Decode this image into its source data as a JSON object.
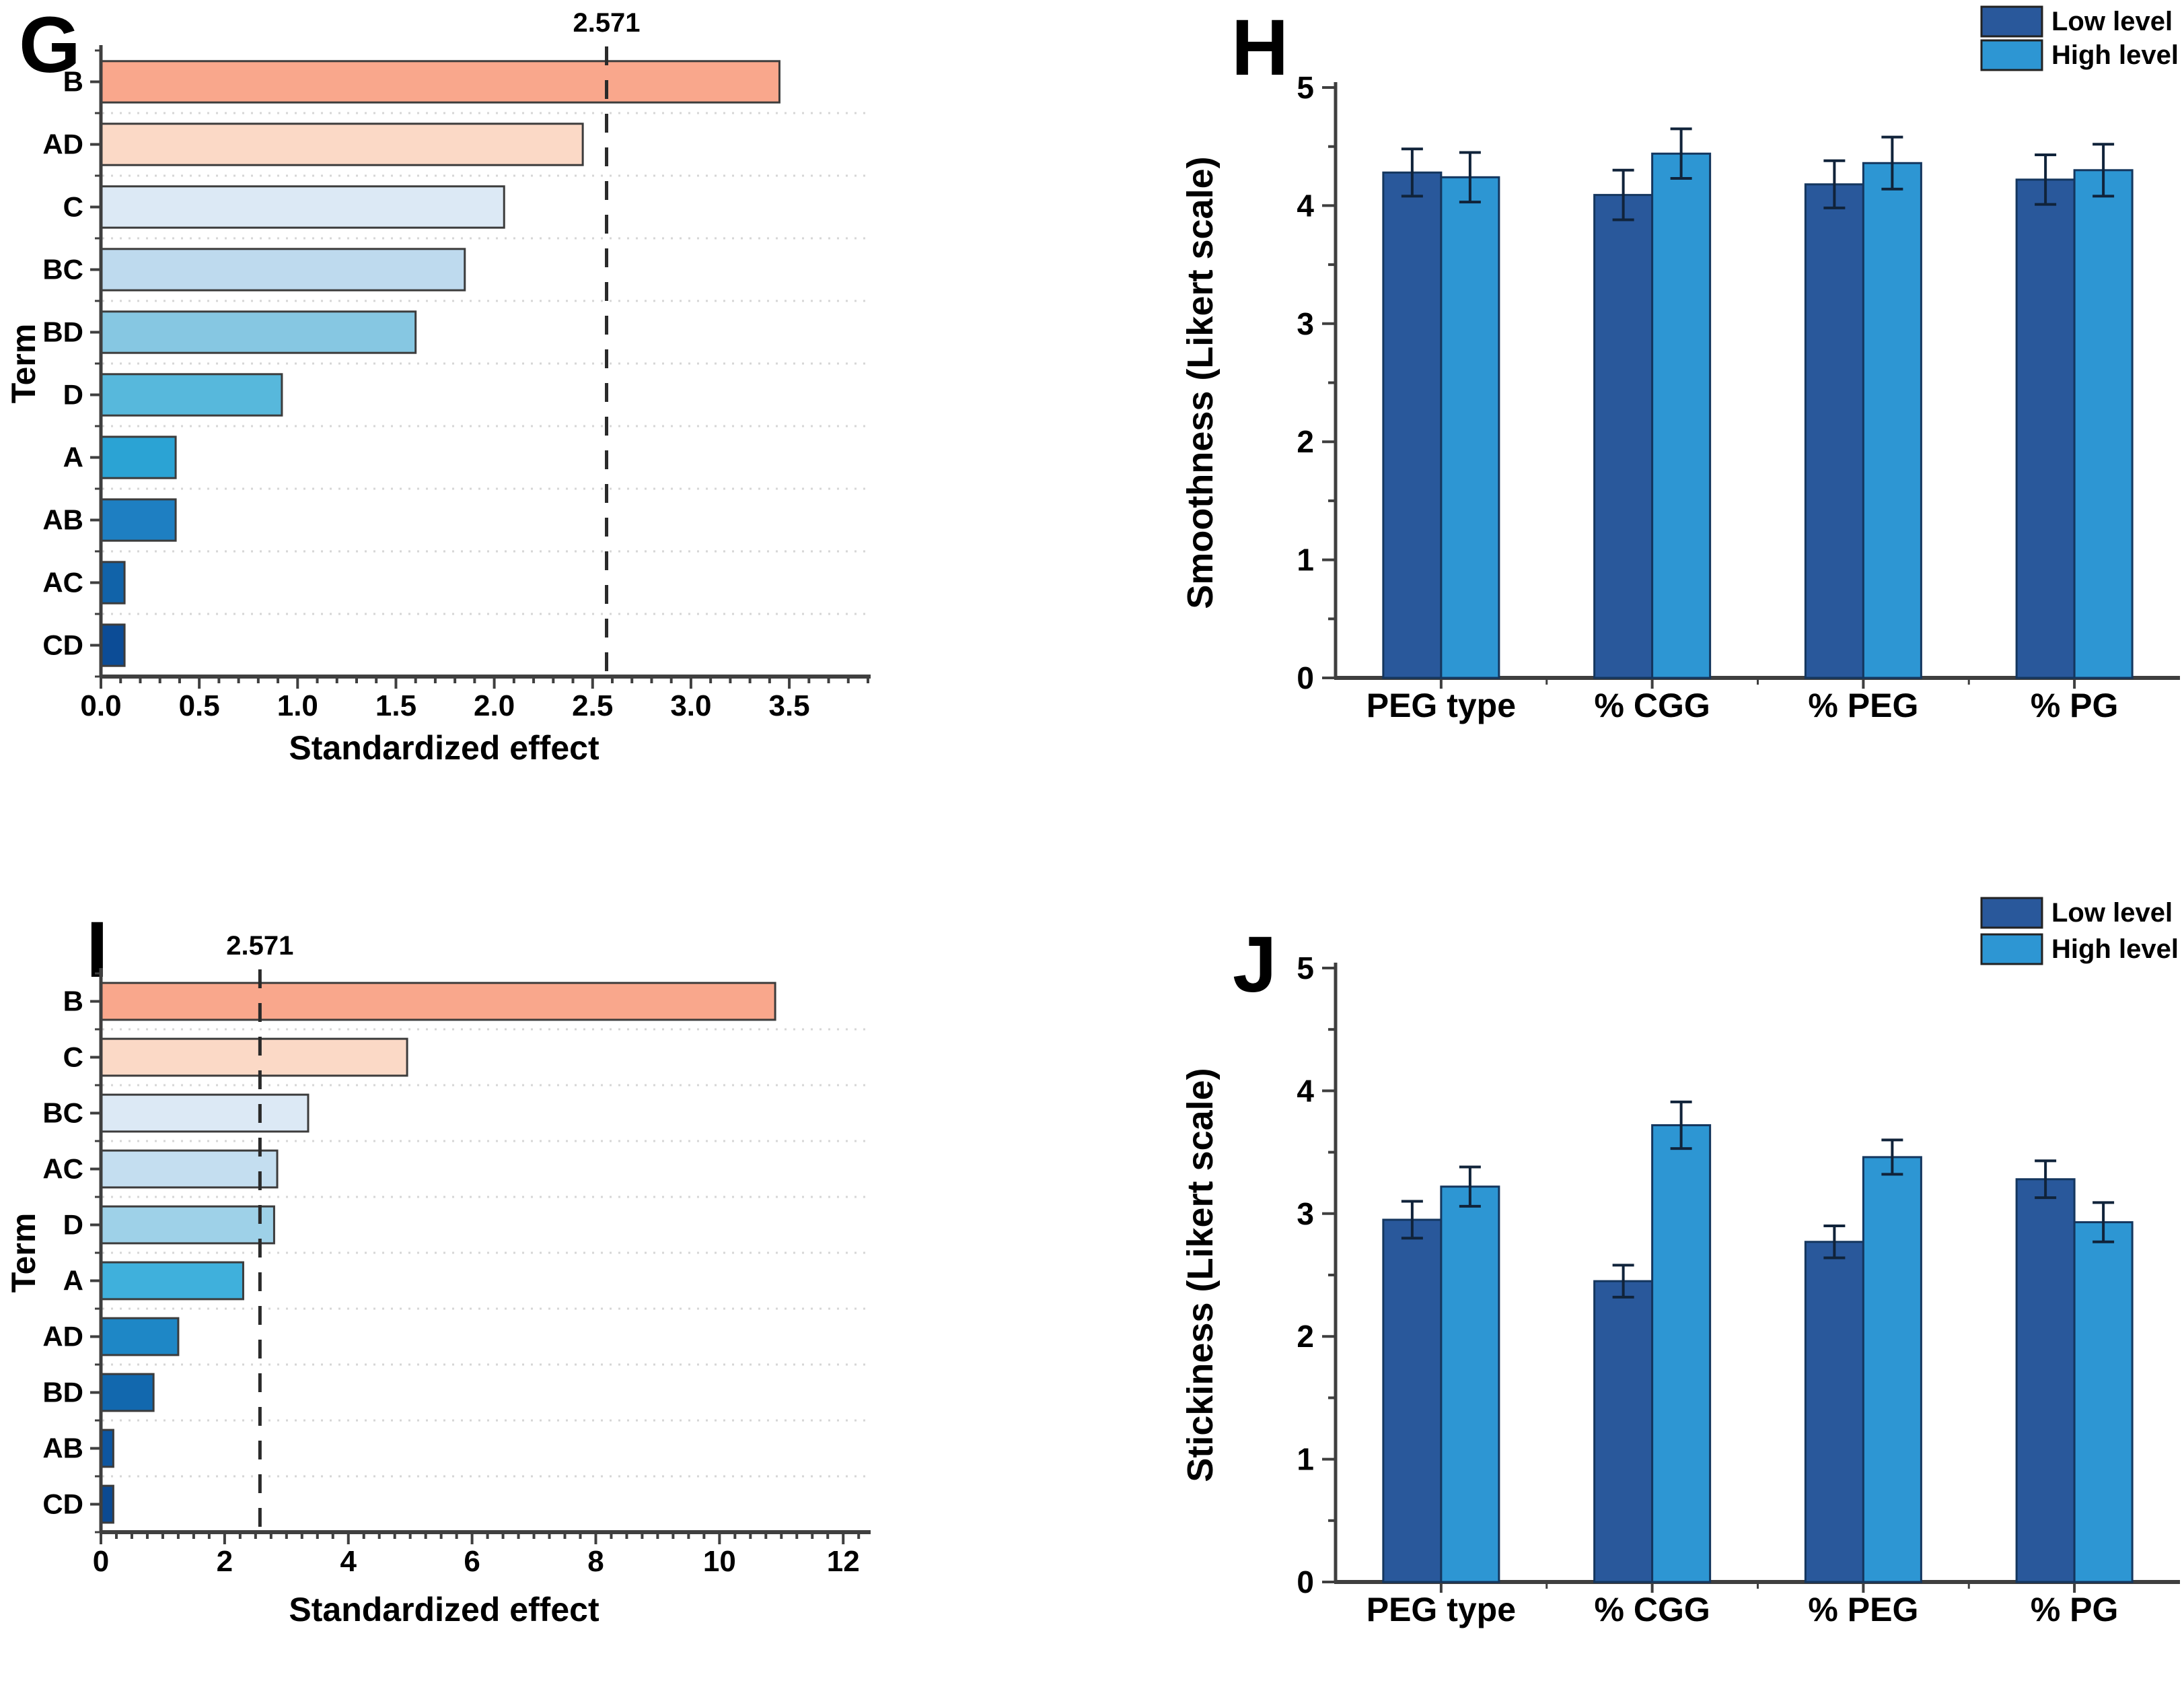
{
  "panels": {
    "G": {
      "letter": "G"
    },
    "H": {
      "letter": "H"
    },
    "I": {
      "letter": "I"
    },
    "J": {
      "letter": "J"
    }
  },
  "legend": {
    "items": [
      {
        "label": "Low level",
        "color": "#29589B"
      },
      {
        "label": "High level",
        "color": "#2D96D3"
      }
    ]
  },
  "chart_data": [
    {
      "id": "G",
      "type": "bar",
      "orientation": "horizontal",
      "title": "",
      "xlabel": "Standardized effect",
      "ylabel": "Term",
      "categories": [
        "B",
        "AD",
        "C",
        "BC",
        "BD",
        "D",
        "A",
        "AB",
        "AC",
        "CD"
      ],
      "values": [
        3.45,
        2.45,
        2.05,
        1.85,
        1.6,
        0.92,
        0.38,
        0.38,
        0.12,
        0.12
      ],
      "bar_colors": [
        "#F9A78C",
        "#FBD9C6",
        "#DCE9F5",
        "#BEDAEE",
        "#86C7E2",
        "#57B8DC",
        "#2BA3D4",
        "#1E7FC2",
        "#1163A9",
        "#0C4C96"
      ],
      "xlim": [
        0,
        3.9
      ],
      "xticks": [
        0,
        0.5,
        1,
        1.5,
        2,
        2.5,
        3,
        3.5
      ],
      "xtick_labels": [
        "0.0",
        "0.5",
        "1.0",
        "1.5",
        "2.0",
        "2.5",
        "3.0",
        "3.5"
      ],
      "minor_tick_step": 0.1,
      "reference_line": {
        "value": 2.571,
        "label": "2.571"
      },
      "grid": "dotted-horizontal"
    },
    {
      "id": "H",
      "type": "grouped_bar",
      "title": "",
      "ylabel": "Smoothness (Likert scale)",
      "categories": [
        "PEG type",
        "% CGG",
        "% PEG",
        "% PG"
      ],
      "series": [
        {
          "name": "Low level",
          "color": "#29589B",
          "values": [
            4.28,
            4.09,
            4.18,
            4.22
          ],
          "errors": [
            0.2,
            0.21,
            0.2,
            0.21
          ]
        },
        {
          "name": "High level",
          "color": "#2D96D3",
          "values": [
            4.24,
            4.44,
            4.36,
            4.3
          ],
          "errors": [
            0.21,
            0.21,
            0.22,
            0.22
          ]
        }
      ],
      "ylim": [
        0,
        5
      ],
      "yticks": [
        0,
        1,
        2,
        3,
        4,
        5
      ],
      "minor_tick_step": 0.5,
      "legend_position": "top-right",
      "grid": false
    },
    {
      "id": "I",
      "type": "bar",
      "orientation": "horizontal",
      "title": "",
      "xlabel": "Standardized effect",
      "ylabel": "Term",
      "categories": [
        "B",
        "C",
        "BC",
        "AC",
        "D",
        "A",
        "AD",
        "BD",
        "AB",
        "CD"
      ],
      "values": [
        10.9,
        4.95,
        3.35,
        2.85,
        2.8,
        2.3,
        1.25,
        0.85,
        0.2,
        0.2
      ],
      "bar_colors": [
        "#F9A78C",
        "#FBD9C6",
        "#DCE9F5",
        "#C4DEF0",
        "#9ED1E8",
        "#3FB0DC",
        "#1E87C6",
        "#1268AE",
        "#0E56A0",
        "#0C4A92"
      ],
      "xlim": [
        0,
        12.4
      ],
      "xticks": [
        0,
        2,
        4,
        6,
        8,
        10,
        12
      ],
      "xtick_labels": [
        "0",
        "2",
        "4",
        "6",
        "8",
        "10",
        "12"
      ],
      "minor_tick_step": 0.25,
      "reference_line": {
        "value": 2.571,
        "label": "2.571"
      },
      "grid": "dotted-horizontal"
    },
    {
      "id": "J",
      "type": "grouped_bar",
      "title": "",
      "ylabel": "Stickiness (Likert scale)",
      "categories": [
        "PEG type",
        "% CGG",
        "% PEG",
        "% PG"
      ],
      "series": [
        {
          "name": "Low level",
          "color": "#29589B",
          "values": [
            2.95,
            2.45,
            2.77,
            3.28
          ],
          "errors": [
            0.15,
            0.13,
            0.13,
            0.15
          ]
        },
        {
          "name": "High level",
          "color": "#2D96D3",
          "values": [
            3.22,
            3.72,
            3.46,
            2.93
          ],
          "errors": [
            0.16,
            0.19,
            0.14,
            0.16
          ]
        }
      ],
      "ylim": [
        0,
        5
      ],
      "yticks": [
        0,
        1,
        2,
        3,
        4,
        5
      ],
      "minor_tick_step": 0.5,
      "legend_position": "top-right",
      "grid": false
    }
  ]
}
